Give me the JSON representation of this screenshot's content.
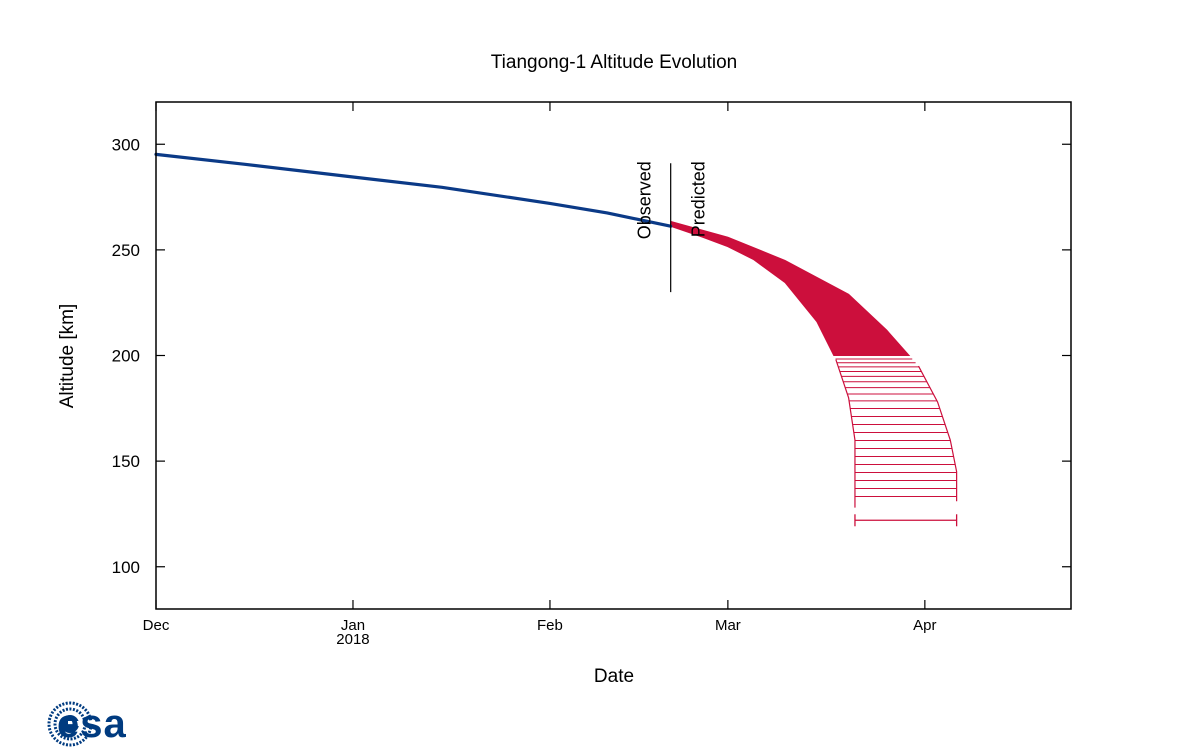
{
  "chart_data": {
    "type": "line",
    "title": "Tiangong-1 Altitude Evolution",
    "xlabel": "Date",
    "ylabel": "Altitude [km]",
    "xlim": [
      "2017-12-01",
      "2018-04-24"
    ],
    "ylim": [
      80,
      320
    ],
    "y_ticks": [
      100,
      150,
      200,
      250,
      300
    ],
    "x_ticks": [
      {
        "date": "2017-12-01",
        "label": "Dec",
        "sublabel": ""
      },
      {
        "date": "2018-01-01",
        "label": "Jan",
        "sublabel": "2018"
      },
      {
        "date": "2018-02-01",
        "label": "Feb",
        "sublabel": ""
      },
      {
        "date": "2018-03-01",
        "label": "Mar",
        "sublabel": ""
      },
      {
        "date": "2018-04-01",
        "label": "Apr",
        "sublabel": ""
      }
    ],
    "grid": false,
    "annotations": {
      "divider_date": "2018-02-20",
      "divider_range": [
        230,
        291
      ],
      "left_label": "Observed",
      "right_label": "Predicted"
    },
    "series": [
      {
        "role": "observed",
        "color": "#0b3a87",
        "points": [
          [
            "2017-12-01",
            295.2
          ],
          [
            "2017-12-15",
            290.5
          ],
          [
            "2018-01-01",
            284.5
          ],
          [
            "2018-01-15",
            279.6
          ],
          [
            "2018-02-01",
            272.0
          ],
          [
            "2018-02-10",
            267.5
          ],
          [
            "2018-02-20",
            261.2
          ]
        ]
      },
      {
        "role": "predicted-earliest",
        "color": "#cc0f3c",
        "points": [
          [
            "2018-02-20",
            261.2
          ],
          [
            "2018-02-25",
            256.0
          ],
          [
            "2018-03-01",
            251.5
          ],
          [
            "2018-03-05",
            245.5
          ],
          [
            "2018-03-10",
            234.5
          ],
          [
            "2018-03-15",
            216.0
          ],
          [
            "2018-03-18",
            198.0
          ],
          [
            "2018-03-20",
            180.0
          ],
          [
            "2018-03-21",
            160.0
          ],
          [
            "2018-03-21",
            140.0
          ],
          [
            "2018-03-21",
            128.0
          ]
        ]
      },
      {
        "role": "predicted-latest",
        "color": "#cc0f3c",
        "points": [
          [
            "2018-02-20",
            263.5
          ],
          [
            "2018-03-01",
            256.0
          ],
          [
            "2018-03-10",
            245.0
          ],
          [
            "2018-03-20",
            229.0
          ],
          [
            "2018-03-26",
            212.0
          ],
          [
            "2018-03-31",
            195.0
          ],
          [
            "2018-04-03",
            178.0
          ],
          [
            "2018-04-05",
            160.0
          ],
          [
            "2018-04-06",
            145.0
          ],
          [
            "2018-04-06",
            131.0
          ]
        ]
      }
    ],
    "reentry_window": {
      "altitude": 122,
      "start": "2018-03-21",
      "end": "2018-04-06",
      "color": "#cc0f3c"
    }
  },
  "logo": {
    "text": "esa",
    "color": "#003b80"
  }
}
